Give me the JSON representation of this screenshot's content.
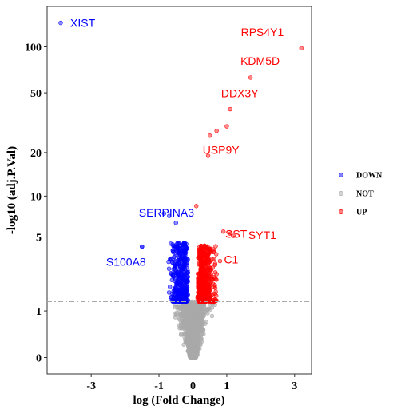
{
  "chart_data": {
    "type": "scatter",
    "xlabel": "log (Fold Change)",
    "ylabel": "-log10 (adj.P.Val)",
    "x_ticks": [
      {
        "value": -3,
        "label": "-3"
      },
      {
        "value": -1,
        "label": "-1"
      },
      {
        "value": 0,
        "label": "0"
      },
      {
        "value": 1,
        "label": "1"
      },
      {
        "value": 3,
        "label": "3"
      }
    ],
    "y_ticks": [
      {
        "value": 0,
        "label": "0"
      },
      {
        "value": 1,
        "label": "1"
      },
      {
        "value": 5,
        "label": "5"
      },
      {
        "value": 10,
        "label": "10"
      },
      {
        "value": 20,
        "label": "20"
      },
      {
        "value": 50,
        "label": "50"
      },
      {
        "value": 100,
        "label": "100"
      }
    ],
    "xlim": [
      -4.3,
      3.5
    ],
    "ylim": [
      -0.2,
      185
    ],
    "y_scale": "pseudo-log",
    "threshold_y": 1.3,
    "grid": false,
    "legend": {
      "placement": "right",
      "entries": [
        {
          "name": "DOWN",
          "color": "#0000ff"
        },
        {
          "name": "NOT",
          "color": "#a9a9a9"
        },
        {
          "name": "UP",
          "color": "#ff0000"
        }
      ]
    },
    "labeled_genes": [
      {
        "name": "XIST",
        "x": -3.9,
        "y": 143,
        "group": "DOWN"
      },
      {
        "name": "RPS4Y1",
        "x": 3.2,
        "y": 98,
        "group": "UP"
      },
      {
        "name": "KDM5D",
        "x": 1.7,
        "y": 63,
        "group": "UP"
      },
      {
        "name": "DDX3Y",
        "x": 1.1,
        "y": 39,
        "group": "UP"
      },
      {
        "name": "USP9Y",
        "x": 0.5,
        "y": 26,
        "group": "UP"
      },
      {
        "name": "SERPINA3",
        "x": -0.85,
        "y": 7.5,
        "group": "DOWN"
      },
      {
        "name": "SST",
        "x": 0.9,
        "y": 5.5,
        "group": "UP"
      },
      {
        "name": "SYT1",
        "x": 1.2,
        "y": 5.1,
        "group": "UP"
      },
      {
        "name": "S100A8",
        "x": -1.5,
        "y": 4.2,
        "group": "DOWN"
      },
      {
        "name": "C1",
        "x": 0.8,
        "y": 3.2,
        "group": "UP"
      }
    ],
    "extra_points": [
      {
        "x": 0.7,
        "y": 28,
        "group": "UP"
      },
      {
        "x": 1.0,
        "y": 30,
        "group": "UP"
      },
      {
        "x": 0.45,
        "y": 19,
        "group": "UP"
      },
      {
        "x": 0.1,
        "y": 8.5,
        "group": "UP"
      },
      {
        "x": 1.1,
        "y": 5.3,
        "group": "UP"
      },
      {
        "x": -0.7,
        "y": 7.2,
        "group": "DOWN"
      },
      {
        "x": -0.5,
        "y": 6.4,
        "group": "DOWN"
      },
      {
        "x": -1.5,
        "y": 4.2,
        "group": "DOWN"
      }
    ]
  }
}
